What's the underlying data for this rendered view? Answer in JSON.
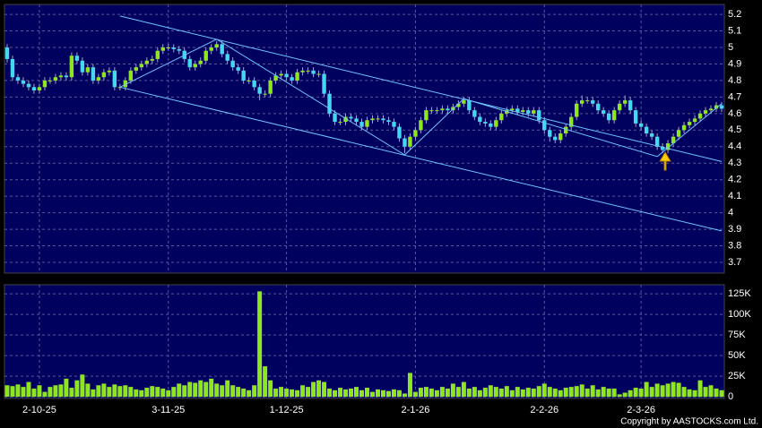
{
  "chart_data": [
    {
      "type": "candlestick",
      "open": [
        5.0,
        4.93,
        4.82,
        4.8,
        4.78,
        4.76,
        4.74,
        4.76,
        4.8,
        4.8,
        4.82,
        4.83,
        4.82,
        4.95,
        4.92,
        4.85,
        4.88,
        4.8,
        4.82,
        4.85,
        4.86,
        4.76,
        4.76,
        4.8,
        4.86,
        4.88,
        4.9,
        4.92,
        4.93,
        4.98,
        5.0,
        5.0,
        4.99,
        4.98,
        4.93,
        4.88,
        4.9,
        4.92,
        4.98,
        5.0,
        5.02,
        4.96,
        4.92,
        4.88,
        4.86,
        4.8,
        4.8,
        4.76,
        4.72,
        4.72,
        4.8,
        4.83,
        4.84,
        4.82,
        4.8,
        4.85,
        4.86,
        4.86,
        4.84,
        4.84,
        4.72,
        4.6,
        4.55,
        4.55,
        4.58,
        4.57,
        4.55,
        4.52,
        4.56,
        4.57,
        4.57,
        4.56,
        4.55,
        4.52,
        4.45,
        4.4,
        4.46,
        4.5,
        4.56,
        4.62,
        4.62,
        4.62,
        4.63,
        4.62,
        4.64,
        4.66,
        4.68,
        4.62,
        4.58,
        4.55,
        4.54,
        4.52,
        4.56,
        4.6,
        4.62,
        4.63,
        4.61,
        4.62,
        4.6,
        4.62,
        4.56,
        4.5,
        4.46,
        4.44,
        4.48,
        4.52,
        4.58,
        4.66,
        4.68,
        4.68,
        4.66,
        4.62,
        4.6,
        4.56,
        4.62,
        4.66,
        4.68,
        4.62,
        4.54,
        4.52,
        4.48,
        4.46,
        4.4,
        4.38,
        4.42,
        4.46,
        4.5,
        4.53,
        4.55,
        4.57,
        4.6,
        4.62,
        4.63,
        4.65
      ],
      "high": [
        5.02,
        4.95,
        4.84,
        4.82,
        4.8,
        4.78,
        4.78,
        4.82,
        4.82,
        4.84,
        4.85,
        4.85,
        4.97,
        4.97,
        4.94,
        4.9,
        4.9,
        4.84,
        4.87,
        4.88,
        4.88,
        4.78,
        4.82,
        4.88,
        4.9,
        4.92,
        4.94,
        4.95,
        5.0,
        5.02,
        5.02,
        5.02,
        5.01,
        5.0,
        4.95,
        4.92,
        4.94,
        5.0,
        5.02,
        5.04,
        5.04,
        4.98,
        4.94,
        4.9,
        4.88,
        4.82,
        4.82,
        4.78,
        4.74,
        4.82,
        4.85,
        4.86,
        4.86,
        4.84,
        4.87,
        4.88,
        4.88,
        4.88,
        4.86,
        4.86,
        4.74,
        4.62,
        4.57,
        4.6,
        4.6,
        4.59,
        4.57,
        4.58,
        4.59,
        4.59,
        4.59,
        4.58,
        4.57,
        4.54,
        4.47,
        4.48,
        4.52,
        4.58,
        4.64,
        4.64,
        4.64,
        4.65,
        4.65,
        4.66,
        4.68,
        4.7,
        4.7,
        4.64,
        4.6,
        4.57,
        4.56,
        4.58,
        4.62,
        4.64,
        4.65,
        4.65,
        4.64,
        4.64,
        4.64,
        4.64,
        4.58,
        4.52,
        4.48,
        4.5,
        4.54,
        4.6,
        4.68,
        4.71,
        4.7,
        4.7,
        4.68,
        4.64,
        4.62,
        4.64,
        4.68,
        4.71,
        4.7,
        4.64,
        4.56,
        4.54,
        4.5,
        4.48,
        4.42,
        4.44,
        4.48,
        4.52,
        4.55,
        4.57,
        4.59,
        4.62,
        4.64,
        4.65,
        4.67,
        4.67
      ],
      "low": [
        4.91,
        4.8,
        4.78,
        4.76,
        4.74,
        4.72,
        4.72,
        4.74,
        4.78,
        4.78,
        4.8,
        4.8,
        4.8,
        4.9,
        4.83,
        4.83,
        4.78,
        4.78,
        4.8,
        4.83,
        4.74,
        4.74,
        4.74,
        4.78,
        4.84,
        4.86,
        4.88,
        4.9,
        4.91,
        4.96,
        4.98,
        4.97,
        4.96,
        4.91,
        4.86,
        4.86,
        4.88,
        4.9,
        4.96,
        4.98,
        4.94,
        4.9,
        4.86,
        4.84,
        4.78,
        4.78,
        4.74,
        4.68,
        4.7,
        4.7,
        4.78,
        4.81,
        4.8,
        4.78,
        4.78,
        4.83,
        4.84,
        4.82,
        4.82,
        4.7,
        4.58,
        4.53,
        4.53,
        4.53,
        4.55,
        4.53,
        4.5,
        4.5,
        4.54,
        4.55,
        4.54,
        4.53,
        4.5,
        4.43,
        4.36,
        4.38,
        4.44,
        4.48,
        4.54,
        4.6,
        4.6,
        4.6,
        4.6,
        4.6,
        4.62,
        4.64,
        4.6,
        4.56,
        4.53,
        4.52,
        4.5,
        4.5,
        4.54,
        4.58,
        4.6,
        4.59,
        4.59,
        4.58,
        4.58,
        4.54,
        4.48,
        4.43,
        4.42,
        4.42,
        4.46,
        4.5,
        4.56,
        4.64,
        4.66,
        4.64,
        4.6,
        4.58,
        4.54,
        4.54,
        4.6,
        4.64,
        4.6,
        4.52,
        4.5,
        4.46,
        4.44,
        4.38,
        4.36,
        4.36,
        4.4,
        4.44,
        4.48,
        4.51,
        4.53,
        4.55,
        4.58,
        4.6,
        4.61,
        4.61
      ],
      "close": [
        4.93,
        4.82,
        4.8,
        4.78,
        4.76,
        4.74,
        4.76,
        4.8,
        4.8,
        4.82,
        4.83,
        4.82,
        4.95,
        4.92,
        4.85,
        4.88,
        4.8,
        4.82,
        4.85,
        4.86,
        4.76,
        4.76,
        4.8,
        4.86,
        4.88,
        4.9,
        4.92,
        4.93,
        4.98,
        5.0,
        5.0,
        4.99,
        4.98,
        4.93,
        4.88,
        4.9,
        4.92,
        4.98,
        5.0,
        5.02,
        4.96,
        4.92,
        4.88,
        4.86,
        4.8,
        4.8,
        4.76,
        4.72,
        4.72,
        4.8,
        4.83,
        4.84,
        4.82,
        4.8,
        4.85,
        4.86,
        4.86,
        4.84,
        4.84,
        4.72,
        4.6,
        4.55,
        4.55,
        4.58,
        4.57,
        4.55,
        4.52,
        4.56,
        4.57,
        4.57,
        4.56,
        4.55,
        4.52,
        4.45,
        4.4,
        4.46,
        4.5,
        4.56,
        4.62,
        4.62,
        4.62,
        4.63,
        4.62,
        4.64,
        4.66,
        4.68,
        4.62,
        4.58,
        4.55,
        4.54,
        4.52,
        4.56,
        4.6,
        4.62,
        4.63,
        4.61,
        4.62,
        4.6,
        4.62,
        4.56,
        4.5,
        4.46,
        4.44,
        4.48,
        4.52,
        4.58,
        4.66,
        4.68,
        4.68,
        4.66,
        4.62,
        4.6,
        4.56,
        4.62,
        4.66,
        4.68,
        4.62,
        4.54,
        4.52,
        4.48,
        4.46,
        4.4,
        4.38,
        4.42,
        4.46,
        4.5,
        4.53,
        4.55,
        4.57,
        4.6,
        4.62,
        4.63,
        4.65,
        4.63
      ],
      "up_color": "#8ee61e",
      "down_color": "#44d8f0",
      "ylim": [
        3.635,
        5.26
      ],
      "yticks": [
        3.7,
        3.8,
        3.9,
        4,
        4.1,
        4.2,
        4.3,
        4.4,
        4.5,
        4.6,
        4.7,
        4.8,
        4.9,
        5,
        5.1,
        5.2
      ],
      "grid": true,
      "trendline_color": "#6ec6ff",
      "trendlines": [
        {
          "x": [
            21,
            133
          ],
          "y": [
            5.19,
            4.31
          ]
        },
        {
          "x": [
            21,
            133
          ],
          "y": [
            4.76,
            3.89
          ]
        },
        {
          "x": [
            21,
            39,
            74,
            85,
            121,
            133
          ],
          "y": [
            4.76,
            5.05,
            4.35,
            4.69,
            4.34,
            4.66
          ]
        }
      ]
    },
    {
      "type": "bar",
      "categories": [
        null,
        null,
        null,
        null,
        null,
        null,
        "2-10-25",
        null,
        null,
        null,
        null,
        null,
        null,
        null,
        null,
        null,
        null,
        null,
        null,
        null,
        null,
        null,
        null,
        null,
        null,
        null,
        null,
        null,
        null,
        null,
        "3-11-25",
        null,
        null,
        null,
        null,
        null,
        null,
        null,
        null,
        null,
        null,
        null,
        null,
        null,
        null,
        null,
        null,
        null,
        null,
        null,
        null,
        null,
        "1-12-25",
        null,
        null,
        null,
        null,
        null,
        null,
        null,
        null,
        null,
        null,
        null,
        null,
        null,
        null,
        null,
        null,
        null,
        null,
        null,
        null,
        null,
        null,
        null,
        "2-1-26",
        null,
        null,
        null,
        null,
        null,
        null,
        null,
        null,
        null,
        null,
        null,
        null,
        null,
        null,
        null,
        null,
        null,
        null,
        null,
        null,
        null,
        null,
        null,
        "2-2-26",
        null,
        null,
        null,
        null,
        null,
        null,
        null,
        null,
        null,
        null,
        null,
        null,
        null,
        null,
        null,
        null,
        null,
        "2-3-26",
        null,
        null,
        null,
        null,
        null,
        null,
        null,
        null,
        null,
        null,
        null,
        null,
        null,
        null,
        null
      ],
      "values": [
        14000,
        13000,
        15000,
        12000,
        18000,
        10000,
        14000,
        6000,
        12000,
        14000,
        15000,
        22000,
        11000,
        20000,
        27000,
        16000,
        9000,
        14000,
        16000,
        12000,
        15000,
        13000,
        14000,
        12000,
        9000,
        8000,
        11000,
        13000,
        12000,
        10000,
        8000,
        12000,
        16000,
        14000,
        18000,
        17000,
        20000,
        18000,
        22000,
        16000,
        14000,
        20000,
        14000,
        12000,
        10000,
        8000,
        14000,
        128000,
        37000,
        20000,
        10000,
        12000,
        10000,
        9000,
        8000,
        14000,
        12000,
        18000,
        20000,
        18000,
        10000,
        8000,
        11000,
        9000,
        10000,
        12000,
        8000,
        11000,
        6000,
        9000,
        8000,
        7000,
        9000,
        8000,
        4000,
        29000,
        6000,
        11000,
        12000,
        10000,
        8000,
        12000,
        10000,
        16000,
        12000,
        18000,
        10000,
        12000,
        8000,
        11000,
        14000,
        12000,
        10000,
        13000,
        8000,
        12000,
        9000,
        11000,
        10000,
        13000,
        16000,
        12000,
        10000,
        8000,
        11000,
        12000,
        13000,
        15000,
        10000,
        14000,
        9000,
        12000,
        10000,
        10000,
        3000,
        5000,
        8000,
        11000,
        10000,
        18000,
        12000,
        16000,
        14000,
        16000,
        18000,
        17000,
        12000,
        9000,
        8000,
        20000,
        12000,
        14000,
        10000,
        8000
      ],
      "color": "#8ee61e",
      "ylim": [
        -2000,
        136000
      ],
      "yticks": [
        0,
        {
          "value": 25000,
          "label": "25K"
        },
        {
          "value": 50000,
          "label": "50K"
        },
        {
          "value": 75000,
          "label": "75K"
        },
        {
          "value": 100000,
          "label": "100K"
        },
        {
          "value": 125000,
          "label": "125K"
        }
      ],
      "grid": true,
      "copyright": "Copyright by AASTOCKS.com Ltd."
    }
  ]
}
